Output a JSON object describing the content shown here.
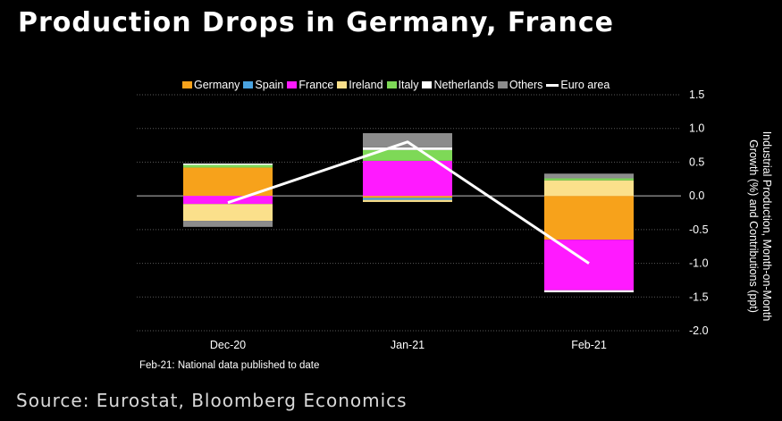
{
  "title": "Production Drops in Germany, France",
  "source": "Source: Eurostat, Bloomberg Economics",
  "note": "Feb-21: National data published to date",
  "chart_data": {
    "type": "bar",
    "stacked": true,
    "categories": [
      "Dec-20",
      "Jan-21",
      "Feb-21"
    ],
    "ylabel_lines": [
      "Industrial Production, Month-on-Month",
      "Growth (%) and Contributions (ppt)"
    ],
    "ylim": [
      -2.0,
      1.5
    ],
    "yticks": [
      "1.5",
      "1.0",
      "0.5",
      "0.0",
      "-0.5",
      "-1.0",
      "-1.5",
      "-2.0"
    ],
    "ytick_values": [
      1.5,
      1.0,
      0.5,
      0.0,
      -0.5,
      -1.0,
      -1.5,
      -2.0
    ],
    "grid": "horizontal dotted",
    "legend_position": "top",
    "series": [
      {
        "name": "Germany",
        "color": "#f7a21b",
        "values": [
          0.42,
          -0.03,
          -0.65
        ]
      },
      {
        "name": "Spain",
        "color": "#4aa3e0",
        "values": [
          0.0,
          -0.03,
          0.0
        ]
      },
      {
        "name": "France",
        "color": "#ff1aff",
        "values": [
          -0.12,
          0.52,
          -0.75
        ]
      },
      {
        "name": "Ireland",
        "color": "#fbe08b",
        "values": [
          -0.25,
          -0.03,
          0.23
        ]
      },
      {
        "name": "Italy",
        "color": "#7ed957",
        "values": [
          0.04,
          0.16,
          0.03
        ]
      },
      {
        "name": "Netherlands",
        "color": "#ffffff",
        "values": [
          0.02,
          0.04,
          -0.03
        ]
      },
      {
        "name": "Others",
        "color": "#8c8c8c",
        "values": [
          -0.09,
          0.21,
          0.07
        ]
      }
    ],
    "line_series": {
      "name": "Euro area",
      "color": "#ffffff",
      "values": [
        -0.1,
        0.8,
        -1.0
      ]
    }
  }
}
